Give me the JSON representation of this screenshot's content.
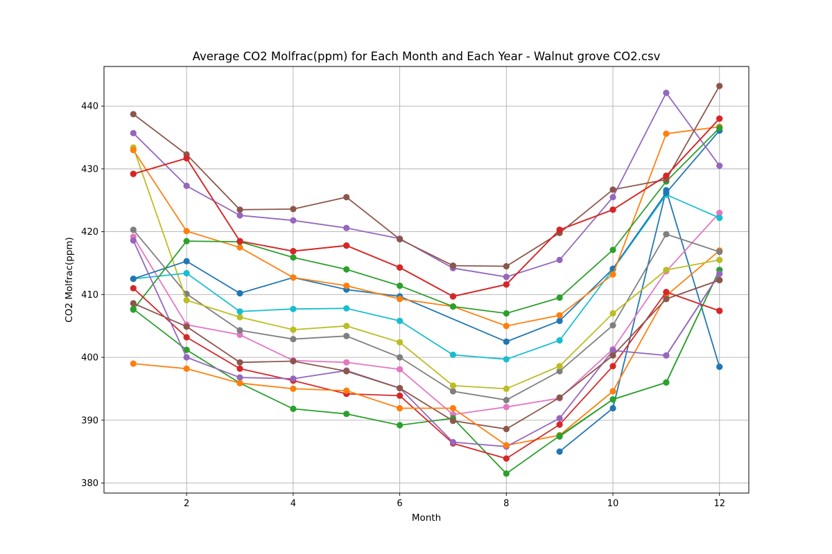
{
  "chart_data": {
    "type": "line",
    "title": "Average CO2 Molfrac(ppm) for Each Month and Each Year - Walnut grove CO2.csv",
    "xlabel": "Month",
    "ylabel": "CO2 Molfrac(ppm)",
    "xlim": [
      0.45,
      12.55
    ],
    "ylim": [
      378.4,
      446.3
    ],
    "xticks": [
      2,
      4,
      6,
      8,
      10,
      12
    ],
    "yticks": [
      380,
      390,
      400,
      410,
      420,
      430,
      440
    ],
    "grid": true,
    "marker": "circle",
    "series": [
      {
        "color": "#1f77b4",
        "x": [
          9,
          10,
          11,
          12
        ],
        "y": [
          385.0,
          391.9,
          426.6,
          398.5
        ]
      },
      {
        "color": "#ff7f0e",
        "x": [
          8,
          9,
          10,
          11,
          12
        ],
        "y": [
          386.0,
          387.6,
          394.6,
          409.8,
          417.0
        ]
      },
      {
        "color": "#2ca02c",
        "x": [
          9,
          10,
          11,
          12
        ],
        "y": [
          387.4,
          393.3,
          396.0,
          413.9
        ]
      },
      {
        "color": "#d62728",
        "x": [
          11,
          12
        ],
        "y": [
          410.4,
          407.4
        ]
      },
      {
        "color": "#9467bd",
        "x": [
          11,
          12
        ],
        "y": [
          400.3,
          413.3
        ]
      },
      {
        "color": "#8c564b",
        "x": [
          11,
          12
        ],
        "y": [
          409.3,
          412.3
        ]
      },
      {
        "color": "#e377c2",
        "x": [
          1,
          2,
          3,
          4,
          5,
          6,
          7,
          8,
          9,
          10,
          11,
          12
        ],
        "y": [
          419.2,
          405.2,
          403.6,
          399.5,
          399.2,
          398.1,
          390.9,
          392.1,
          393.5,
          401.3,
          413.7,
          423.0
        ]
      },
      {
        "color": "#7f7f7f",
        "x": [
          1,
          2,
          3,
          4,
          5,
          6,
          7,
          8,
          9,
          10,
          11,
          12
        ],
        "y": [
          420.3,
          410.1,
          404.3,
          402.9,
          403.4,
          400.0,
          394.6,
          393.2,
          397.8,
          405.1,
          419.6,
          416.8
        ]
      },
      {
        "color": "#bcbd22",
        "x": [
          1,
          2,
          3,
          4,
          5,
          6,
          7,
          8,
          9,
          10,
          11,
          12
        ],
        "y": [
          433.4,
          409.1,
          406.4,
          404.4,
          405.0,
          402.4,
          395.5,
          395.0,
          398.6,
          407.0,
          413.9,
          415.5
        ]
      },
      {
        "color": "#17becf",
        "x": [
          1,
          2,
          3,
          4,
          5,
          6,
          7,
          8,
          9,
          10,
          11,
          12
        ],
        "y": [
          412.5,
          413.4,
          407.3,
          407.7,
          407.8,
          405.8,
          400.4,
          399.7,
          402.7,
          414.0,
          425.9,
          422.2
        ]
      },
      {
        "color": "#1f77b4",
        "x": [
          1,
          2,
          3,
          4,
          5,
          6,
          8,
          9,
          10,
          11,
          12
        ],
        "y": [
          412.5,
          415.3,
          410.2,
          412.7,
          410.8,
          409.7,
          402.5,
          405.8,
          414.1,
          426.2,
          436.1
        ]
      },
      {
        "color": "#ff7f0e",
        "x": [
          1,
          2,
          3,
          4,
          5,
          6,
          7,
          8,
          9,
          10,
          11,
          12
        ],
        "y": [
          433.0,
          420.1,
          417.5,
          412.7,
          411.4,
          409.3,
          408.1,
          405.0,
          406.7,
          413.2,
          435.6,
          436.7
        ]
      },
      {
        "color": "#2ca02c",
        "x": [
          1,
          2,
          3,
          4,
          5,
          6,
          7,
          8,
          9,
          10,
          11,
          12
        ],
        "y": [
          407.6,
          418.5,
          418.4,
          415.9,
          414.0,
          411.4,
          408.1,
          407.0,
          409.5,
          417.1,
          428.0,
          436.5
        ]
      },
      {
        "color": "#d62728",
        "x": [
          1,
          2,
          3,
          4,
          5,
          6,
          7,
          8,
          9,
          10,
          11,
          12
        ],
        "y": [
          429.2,
          431.7,
          418.5,
          416.9,
          417.8,
          414.3,
          409.7,
          411.6,
          420.3,
          423.5,
          428.9,
          438.0
        ]
      },
      {
        "color": "#9467bd",
        "x": [
          1,
          2,
          3,
          4,
          5,
          6,
          7,
          8,
          9,
          10,
          11,
          12
        ],
        "y": [
          435.7,
          427.3,
          422.6,
          421.8,
          420.6,
          418.9,
          414.2,
          412.8,
          415.5,
          425.5,
          442.1,
          430.5
        ]
      },
      {
        "color": "#8c564b",
        "x": [
          1,
          2,
          3,
          4,
          5,
          6,
          7,
          8,
          9,
          10,
          11,
          12
        ],
        "y": [
          438.7,
          432.3,
          423.5,
          423.6,
          425.5,
          418.8,
          414.6,
          414.5,
          419.8,
          426.7,
          428.3,
          443.2
        ]
      },
      {
        "color": "#e377c2",
        "x": [
          2
        ],
        "y": [
          405.2
        ]
      },
      {
        "color": "#2ca02c",
        "x": [
          1,
          2,
          3,
          4,
          5,
          6,
          7,
          8,
          9,
          10,
          11,
          12
        ],
        "y": [
          407.7,
          401.2,
          395.9,
          391.8,
          391.0,
          389.2,
          390.3,
          381.5,
          387.5,
          393.3,
          396.0,
          413.9
        ]
      },
      {
        "color": "#d62728",
        "x": [
          1,
          2,
          3,
          4,
          5,
          6,
          7,
          8,
          9,
          10,
          11,
          12
        ],
        "y": [
          411.0,
          403.2,
          398.2,
          396.3,
          394.2,
          393.9,
          386.3,
          383.9,
          389.3,
          398.6,
          410.4,
          407.4
        ]
      },
      {
        "color": "#9467bd",
        "x": [
          1,
          2,
          3,
          4,
          5,
          6,
          7,
          8,
          9,
          10,
          11,
          12
        ],
        "y": [
          418.6,
          400.0,
          396.8,
          396.6,
          397.9,
          395.1,
          386.5,
          385.8,
          390.3,
          401.1,
          400.3,
          413.3
        ]
      },
      {
        "color": "#8c564b",
        "x": [
          1,
          2,
          3,
          4,
          5,
          6,
          7,
          8,
          9,
          10,
          11,
          12
        ],
        "y": [
          408.6,
          404.9,
          399.2,
          399.4,
          397.8,
          395.1,
          389.9,
          388.6,
          393.6,
          400.3,
          409.3,
          412.3
        ]
      },
      {
        "color": "#ff7f0e",
        "x": [
          1,
          2,
          3,
          4,
          5,
          6,
          7,
          8
        ],
        "y": [
          399.0,
          398.2,
          395.9,
          395.0,
          394.7,
          391.9,
          391.9,
          386.0
        ]
      },
      {
        "color": "#d62728",
        "x": [
          1,
          2,
          3,
          4,
          5,
          6,
          7,
          8,
          9,
          10,
          11,
          12
        ],
        "y": [
          429.2,
          431.7,
          418.5,
          416.9,
          417.8,
          414.3,
          409.7,
          411.6,
          420.3,
          423.5,
          428.9,
          438.0
        ]
      }
    ]
  }
}
